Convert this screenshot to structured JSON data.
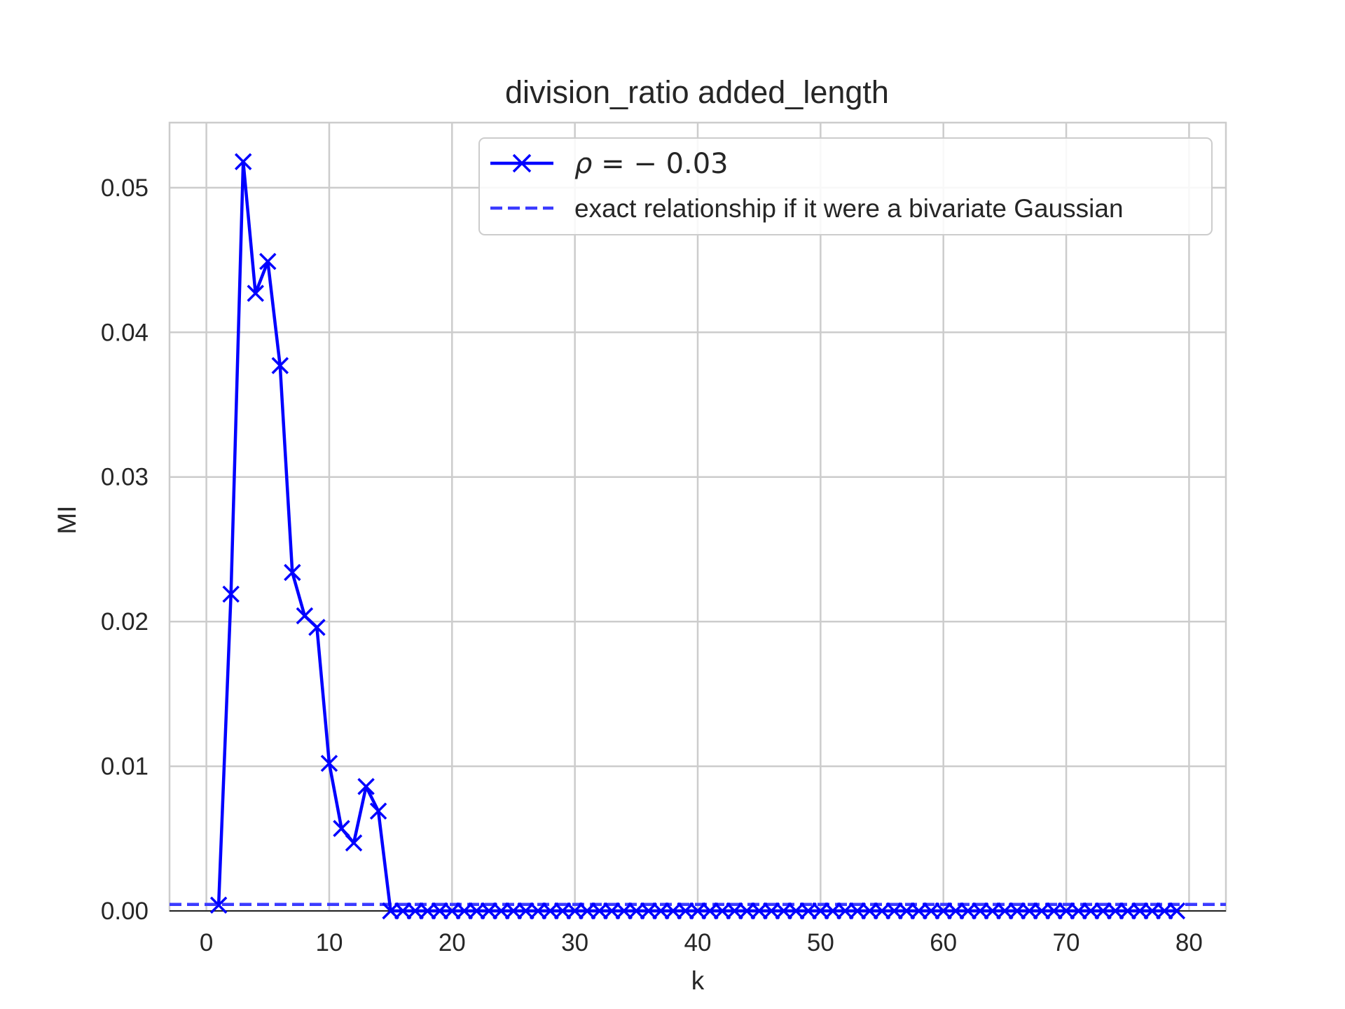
{
  "chart_data": {
    "type": "line",
    "title": "division_ratio added_length",
    "xlabel": "k",
    "ylabel": "MI",
    "xlim": [
      -3,
      83
    ],
    "ylim": [
      0,
      0.0545
    ],
    "xticks": [
      0,
      10,
      20,
      30,
      40,
      50,
      60,
      70,
      80
    ],
    "xtick_labels": [
      "0",
      "10",
      "20",
      "30",
      "40",
      "50",
      "60",
      "70",
      "80"
    ],
    "yticks": [
      0,
      0.01,
      0.02,
      0.03,
      0.04,
      0.05
    ],
    "ytick_labels": [
      "0.00",
      "0.01",
      "0.02",
      "0.03",
      "0.04",
      "0.05"
    ],
    "grid": true,
    "legend_position": "top-right",
    "series": [
      {
        "name": "ρ = − 0.03",
        "name_rho": "ρ",
        "name_rest": " = − 0.03",
        "color": "#0000ff",
        "marker": "x",
        "line_style": "solid",
        "x": [
          1,
          2,
          3,
          4,
          5,
          6,
          7,
          8,
          9,
          10,
          11,
          12,
          13,
          14,
          15,
          16,
          17,
          18,
          19,
          20,
          21,
          22,
          23,
          24,
          25,
          26,
          27,
          28,
          29,
          30,
          31,
          32,
          33,
          34,
          35,
          36,
          37,
          38,
          39,
          40,
          41,
          42,
          43,
          44,
          45,
          46,
          47,
          48,
          49,
          50,
          51,
          52,
          53,
          54,
          55,
          56,
          57,
          58,
          59,
          60,
          61,
          62,
          63,
          64,
          65,
          66,
          67,
          68,
          69,
          70,
          71,
          72,
          73,
          74,
          75,
          76,
          77,
          78,
          79
        ],
        "y": [
          0.0004,
          0.0219,
          0.0518,
          0.0427,
          0.0449,
          0.0377,
          0.0234,
          0.0204,
          0.0196,
          0.0102,
          0.0057,
          0.0047,
          0.0086,
          0.0069,
          0,
          0,
          0,
          0,
          0,
          0,
          0,
          0,
          0,
          0,
          0,
          0,
          0,
          0,
          0,
          0,
          0,
          0,
          0,
          0,
          0,
          0,
          0,
          0,
          0,
          0,
          0,
          0,
          0,
          0,
          0,
          0,
          0,
          0,
          0,
          0,
          0,
          0,
          0,
          0,
          0,
          0,
          0,
          0,
          0,
          0,
          0,
          0,
          0,
          0,
          0,
          0,
          0,
          0,
          0,
          0,
          0,
          0,
          0,
          0,
          0,
          0,
          0,
          0,
          0
        ]
      },
      {
        "name": "exact relationship if it were a bivariate Gaussian",
        "color": "#3b3bff",
        "line_style": "dashed",
        "y_constant": 0.00045
      }
    ]
  }
}
